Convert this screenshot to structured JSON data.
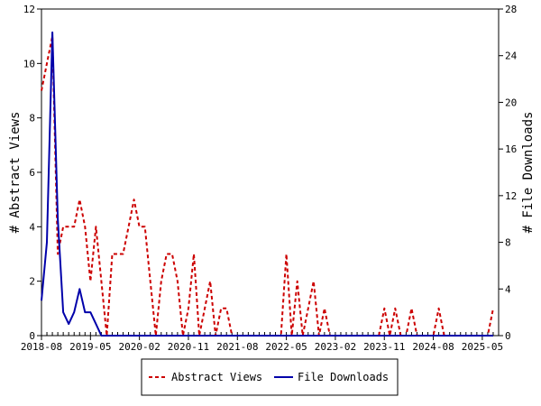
{
  "chart_data": {
    "type": "line",
    "x_tick_labels": [
      "2018-08",
      "2019-05",
      "2020-02",
      "2020-11",
      "2021-08",
      "2022-05",
      "2023-02",
      "2023-11",
      "2024-08",
      "2025-05"
    ],
    "y_left": {
      "label": "# Abstract Views",
      "ylim": [
        0,
        12
      ],
      "ticks": [
        0,
        2,
        4,
        6,
        8,
        10,
        12
      ]
    },
    "y_right": {
      "label": "# File Downloads",
      "ylim": [
        0,
        28
      ],
      "ticks": [
        0,
        4,
        8,
        12,
        16,
        20,
        24,
        28
      ]
    },
    "months_total": 84,
    "grid": false,
    "legend_position": "bottom",
    "series": [
      {
        "name": "Abstract Views",
        "axis": "left",
        "color": "#cc0000",
        "style": "dashed",
        "values": [
          9,
          10,
          11,
          3,
          4,
          4,
          4,
          5,
          4,
          2,
          4,
          2,
          0,
          3,
          3,
          3,
          4,
          5,
          4,
          4,
          2,
          0,
          2,
          3,
          3,
          2,
          0,
          1,
          3,
          0,
          1,
          2,
          0,
          1,
          1,
          0,
          0,
          0,
          0,
          0,
          0,
          0,
          0,
          0,
          0,
          3,
          0,
          2,
          0,
          1,
          2,
          0,
          1,
          0,
          0,
          0,
          0,
          0,
          0,
          0,
          0,
          0,
          0,
          1,
          0,
          1,
          0,
          0,
          1,
          0,
          0,
          0,
          0,
          1,
          0,
          0,
          0,
          0,
          0,
          0,
          0,
          0,
          0,
          1
        ]
      },
      {
        "name": "File Downloads",
        "axis": "right",
        "color": "#0000aa",
        "style": "solid",
        "values": [
          3,
          8,
          26,
          10,
          2,
          1,
          2,
          4,
          2,
          2,
          1,
          0,
          0,
          0,
          0,
          0,
          0,
          0,
          0,
          0,
          0,
          0,
          0,
          0,
          0,
          0,
          0,
          0,
          0,
          0,
          0,
          0,
          0,
          0,
          0,
          0,
          0,
          0,
          0,
          0,
          0,
          0,
          0,
          0,
          0,
          0,
          0,
          0,
          0,
          0,
          0,
          0,
          0,
          0,
          0,
          0,
          0,
          0,
          0,
          0,
          0,
          0,
          0,
          0,
          0,
          0,
          0,
          0,
          0,
          0,
          0,
          0,
          0,
          0,
          0,
          0,
          0,
          0,
          0,
          0,
          0,
          0,
          0,
          0
        ]
      }
    ]
  }
}
